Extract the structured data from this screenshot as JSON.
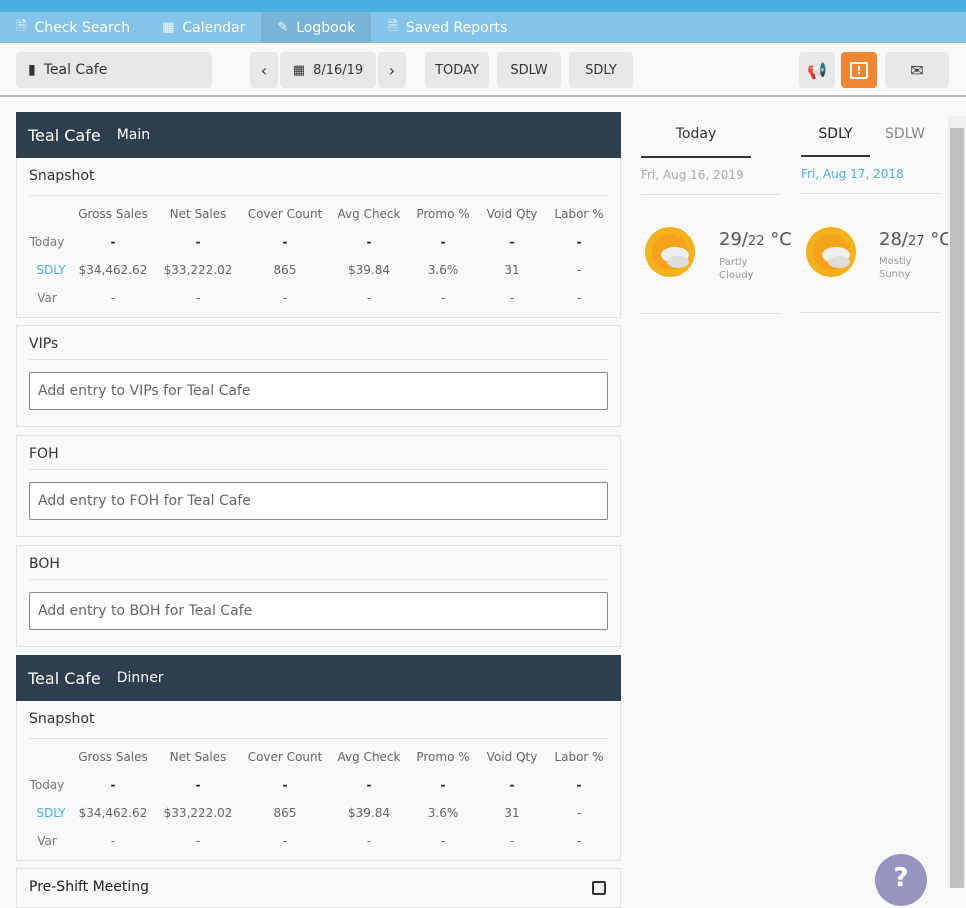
{
  "tabs": [
    {
      "label": "Check Search",
      "icon": "search-doc-icon"
    },
    {
      "label": "Calendar",
      "icon": "calendar-icon"
    },
    {
      "label": "Logbook",
      "icon": "logbook-icon",
      "active": true
    },
    {
      "label": "Saved Reports",
      "icon": "report-icon"
    }
  ],
  "toolbar": {
    "location": "Teal Cafe",
    "date": "8/16/19",
    "today": "TODAY",
    "sdlw": "SDLW",
    "sdly": "SDLY"
  },
  "accent": "#f0862f",
  "columns": [
    "Gross Sales",
    "Net Sales",
    "Cover Count",
    "Avg Check",
    "Promo %",
    "Void Qty",
    "Labor %"
  ],
  "sections": [
    {
      "name": "Teal Cafe",
      "sub": "Main",
      "snapshot": "Snapshot",
      "rows": [
        {
          "label": "Today",
          "values": [
            "-",
            "-",
            "-",
            "-",
            "-",
            "-",
            "-"
          ]
        },
        {
          "label": "SDLY",
          "values": [
            "$34,462.62",
            "$33,222.02",
            "865",
            "$39.84",
            "3.6%",
            "31",
            "-"
          ]
        },
        {
          "label": "Var",
          "values": [
            "-",
            "-",
            "-",
            "-",
            "-",
            "-",
            "-"
          ]
        }
      ]
    },
    {
      "name": "Teal Cafe",
      "sub": "Dinner",
      "snapshot": "Snapshot",
      "rows": [
        {
          "label": "Today",
          "values": [
            "-",
            "-",
            "-",
            "-",
            "-",
            "-",
            "-"
          ]
        },
        {
          "label": "SDLY",
          "values": [
            "$34,462.62",
            "$33,222.02",
            "865",
            "$39.84",
            "3.6%",
            "31",
            "-"
          ]
        },
        {
          "label": "Var",
          "values": [
            "-",
            "-",
            "-",
            "-",
            "-",
            "-",
            "-"
          ]
        }
      ]
    }
  ],
  "notes": [
    {
      "title": "VIPs",
      "placeholder": "Add entry to VIPs for Teal Cafe"
    },
    {
      "title": "FOH",
      "placeholder": "Add entry to FOH for Teal Cafe"
    },
    {
      "title": "BOH",
      "placeholder": "Add entry to BOH for Teal Cafe"
    }
  ],
  "preshift": "Pre-Shift Meeting",
  "weather": {
    "today": {
      "tab": "Today",
      "date": "Fri, Aug 16, 2019",
      "high": "29",
      "low": "22",
      "unit": "°C",
      "cond1": "Partly",
      "cond2": "Cloudy"
    },
    "compare": {
      "tabs": [
        "SDLY",
        "SDLW"
      ],
      "date": "Fri, Aug 17, 2018",
      "high": "28",
      "low": "27",
      "unit": "°C",
      "cond1": "Mostly",
      "cond2": "Sunny"
    }
  },
  "help": "?"
}
